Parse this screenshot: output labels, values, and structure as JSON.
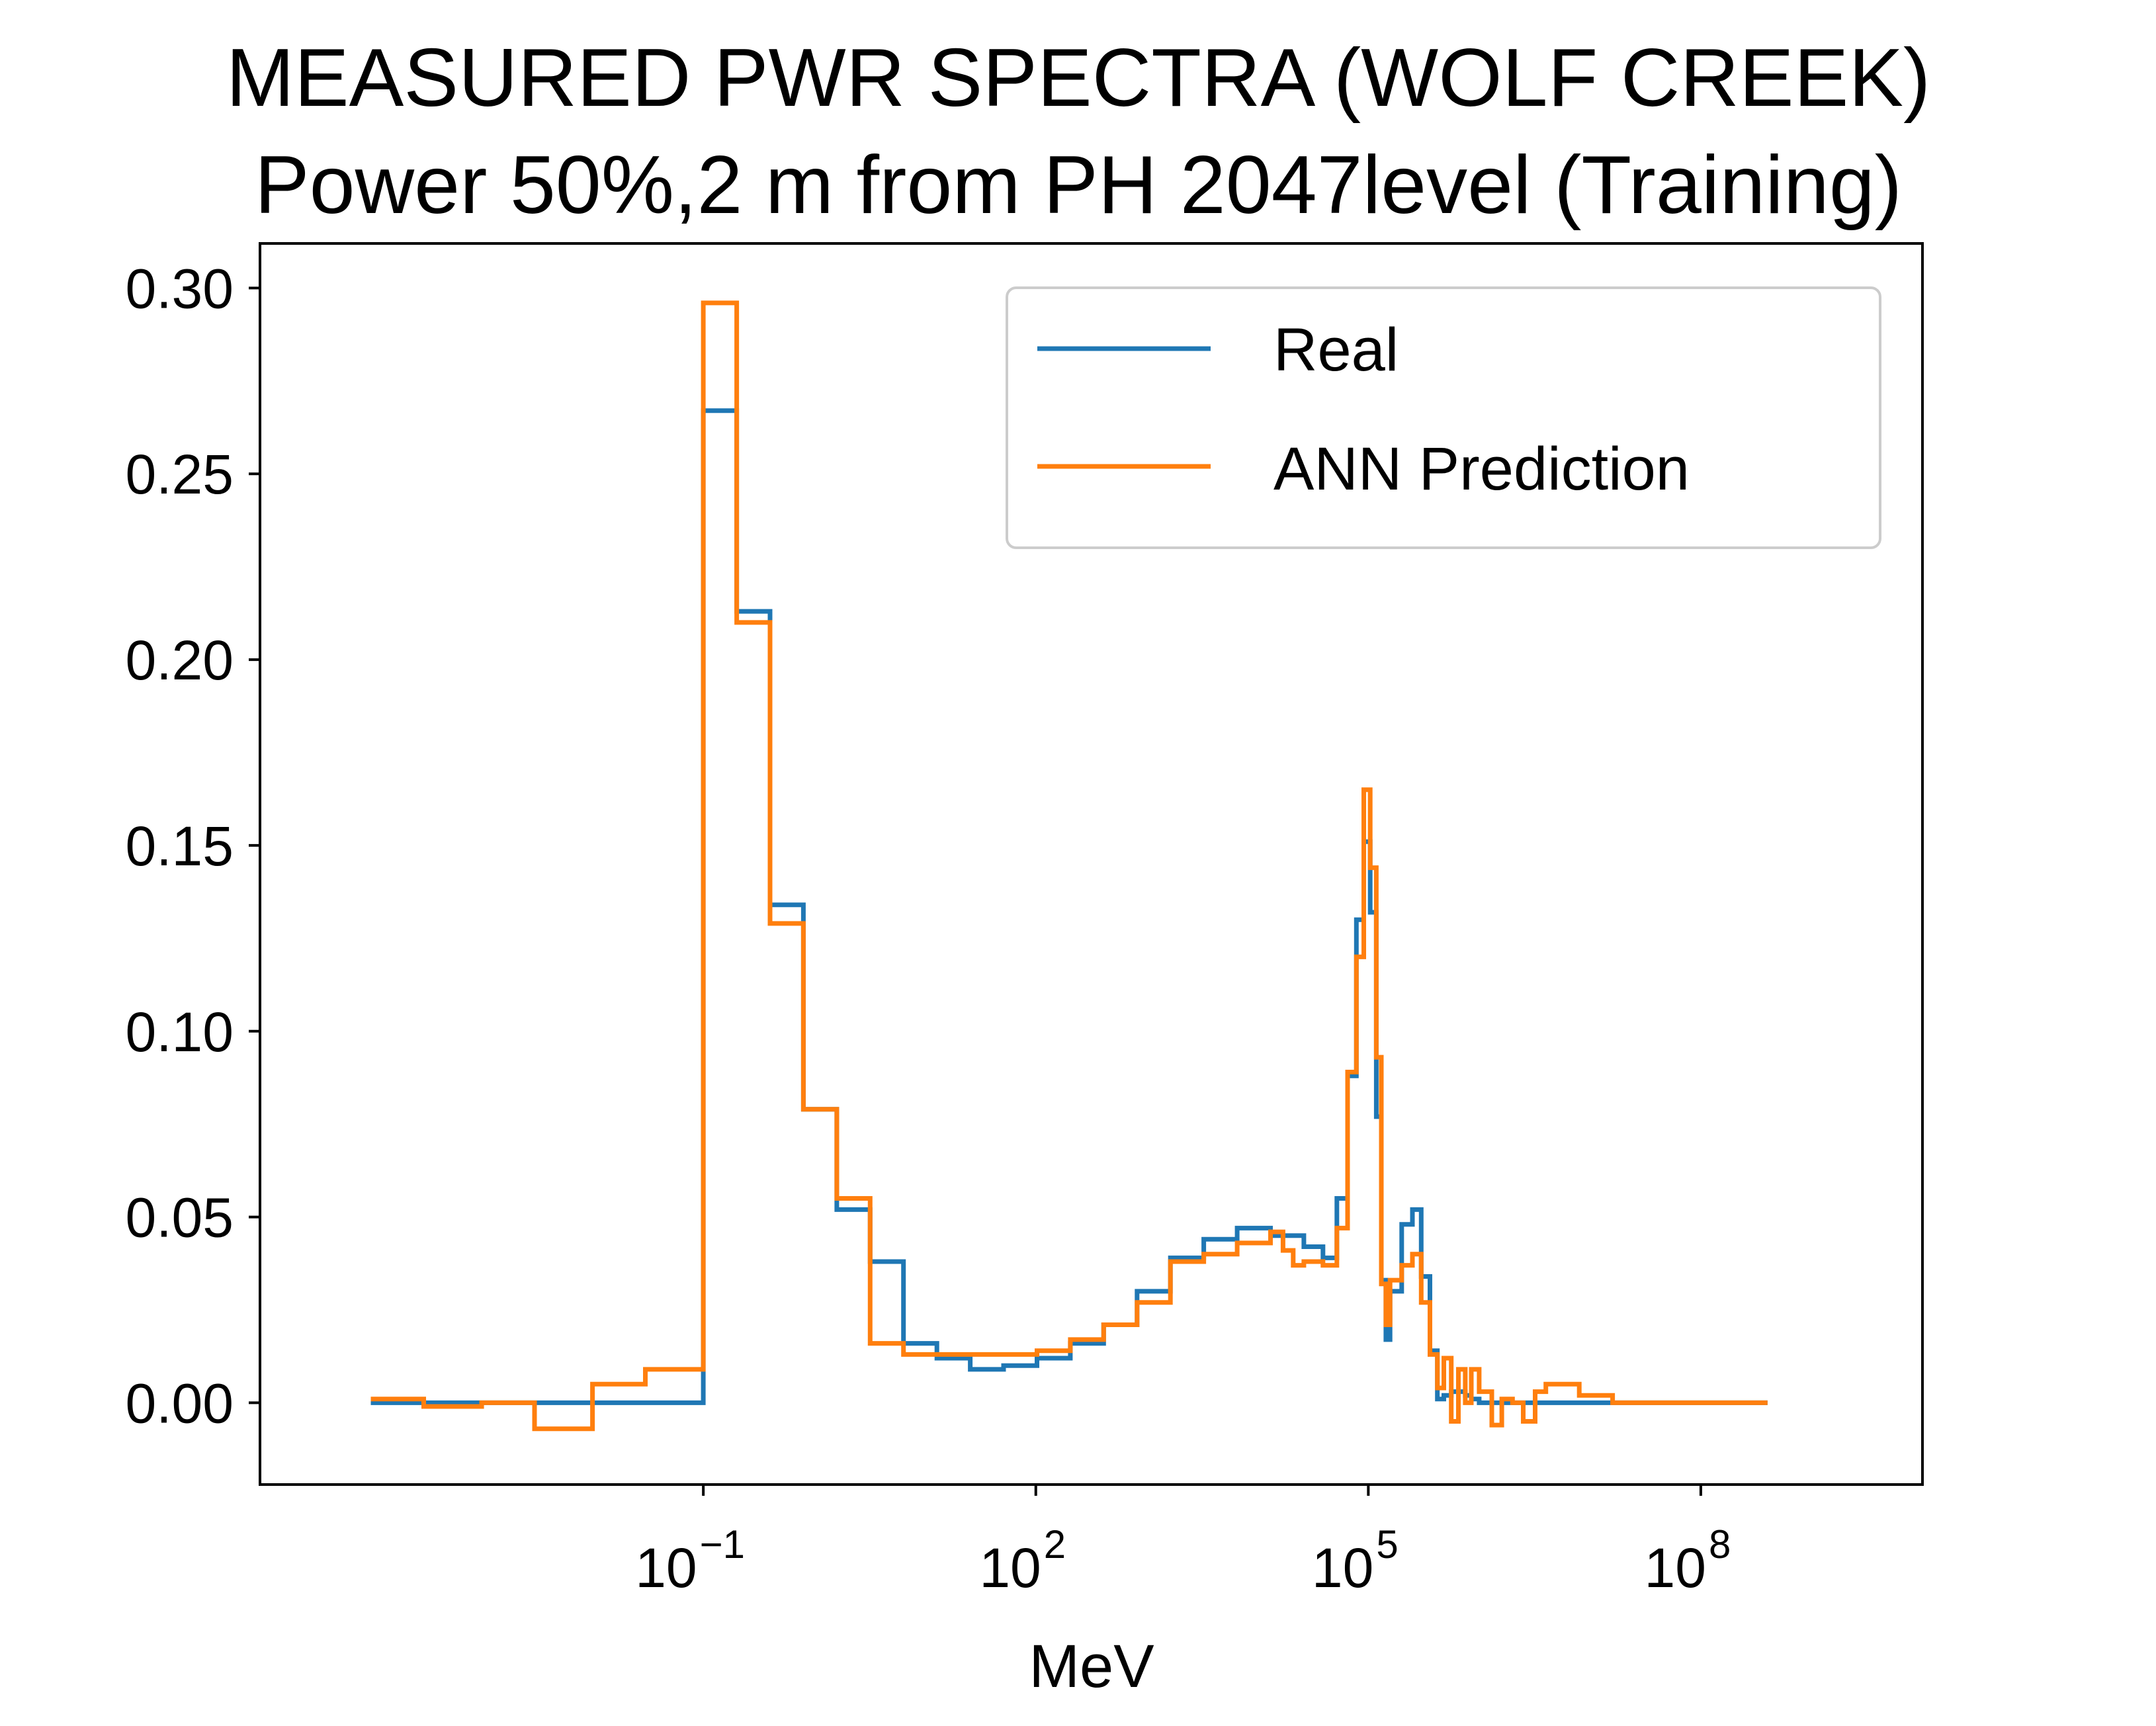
{
  "chart_data": {
    "type": "line",
    "step": true,
    "title": "MEASURED PWR SPECTRA (WOLF CREEK)",
    "subtitle": "Power 50%,2 m from PH 2047level (Training)",
    "xlabel": "MeV",
    "ylabel": "",
    "xscale": "log",
    "xlim": [
      1e-05,
      10000000000.0
    ],
    "ylim": [
      -0.022,
      0.312
    ],
    "xticks": [
      {
        "base": "10",
        "exp": "−1",
        "value": 0.1
      },
      {
        "base": "10",
        "exp": "2",
        "value": 100
      },
      {
        "base": "10",
        "exp": "5",
        "value": 100000
      },
      {
        "base": "10",
        "exp": "8",
        "value": 100000000
      }
    ],
    "yticks": [
      "0.00",
      "0.05",
      "0.10",
      "0.15",
      "0.20",
      "0.25",
      "0.30"
    ],
    "legend_position": "top-right",
    "grid": false,
    "series": [
      {
        "name": "Real",
        "color": "#1f77b4",
        "x": [
          0.0001,
          0.001,
          0.01,
          0.1,
          0.2,
          0.4,
          0.8,
          1.6,
          3.2,
          6.4,
          12.8,
          25.6,
          51.2,
          102.4,
          204.8,
          409.6,
          819.2,
          1638,
          3277,
          6554,
          13107,
          26214,
          39000,
          52000,
          65000,
          78000,
          91000,
          104000,
          118000,
          131000,
          144000,
          157000,
          200000,
          250000,
          300000,
          360000,
          420000,
          480000,
          560000,
          650000,
          750000,
          850000,
          1000000,
          1300000,
          1600000,
          2000000,
          2500000,
          3200000,
          4000000,
          8000000,
          16000000,
          32000000,
          64000000,
          128000000,
          400000000
        ],
        "y": [
          0.0,
          0.0,
          0.0,
          0.267,
          0.213,
          0.134,
          0.079,
          0.052,
          0.038,
          0.016,
          0.012,
          0.009,
          0.01,
          0.012,
          0.016,
          0.021,
          0.03,
          0.039,
          0.044,
          0.047,
          0.045,
          0.042,
          0.039,
          0.055,
          0.088,
          0.13,
          0.151,
          0.132,
          0.077,
          0.033,
          0.017,
          0.03,
          0.048,
          0.052,
          0.034,
          0.014,
          0.001,
          0.002,
          0.003,
          0.003,
          0.002,
          0.001,
          0.0,
          0.0,
          0.0,
          0.0,
          0.0,
          0.0,
          0.0,
          0.0,
          0.0,
          0.0,
          0.0,
          0.0,
          0.0
        ]
      },
      {
        "name": "ANN Prediction",
        "color": "#ff7f0e",
        "x": [
          0.0001,
          0.0003,
          0.001,
          0.003,
          0.01,
          0.03,
          0.1,
          0.2,
          0.4,
          0.8,
          1.6,
          3.2,
          6.4,
          12.8,
          25.6,
          51.2,
          102.4,
          204.8,
          409.6,
          819.2,
          1638,
          3277,
          6554,
          13107,
          17000,
          21000,
          26214,
          39000,
          52000,
          65000,
          78000,
          91000,
          104000,
          118000,
          131000,
          144000,
          157000,
          200000,
          250000,
          300000,
          360000,
          420000,
          480000,
          560000,
          650000,
          750000,
          850000,
          1000000,
          1300000,
          1600000,
          2000000,
          2500000,
          3200000,
          4000000,
          8000000,
          16000000,
          32000000,
          64000000,
          128000000,
          400000000
        ],
        "y": [
          0.001,
          -0.001,
          0.0,
          -0.007,
          0.005,
          0.009,
          0.296,
          0.21,
          0.129,
          0.079,
          0.055,
          0.016,
          0.013,
          0.013,
          0.013,
          0.013,
          0.014,
          0.017,
          0.021,
          0.027,
          0.038,
          0.04,
          0.043,
          0.046,
          0.041,
          0.037,
          0.038,
          0.037,
          0.047,
          0.089,
          0.12,
          0.165,
          0.144,
          0.093,
          0.032,
          0.021,
          0.033,
          0.037,
          0.04,
          0.027,
          0.013,
          0.004,
          0.012,
          -0.005,
          0.009,
          0.0,
          0.009,
          0.003,
          -0.006,
          0.001,
          0.0,
          -0.005,
          0.003,
          0.005,
          0.002,
          0.0,
          0.0,
          0.0,
          0.0,
          0.0
        ]
      }
    ]
  }
}
